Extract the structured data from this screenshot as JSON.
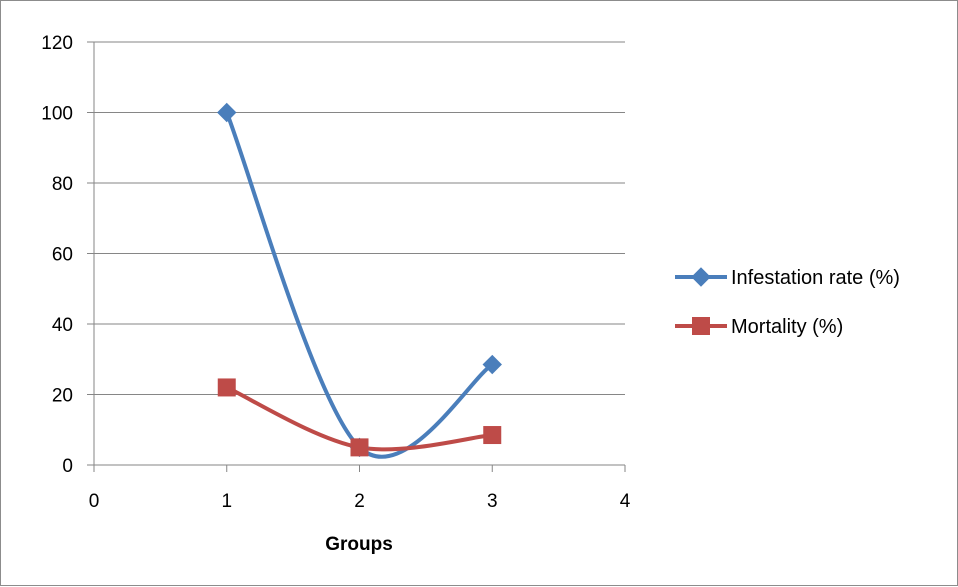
{
  "chart_data": {
    "type": "line",
    "title": "",
    "xlabel": "Groups",
    "ylabel": "",
    "xlim": [
      0,
      4
    ],
    "ylim": [
      0,
      120
    ],
    "x_ticks": [
      0,
      1,
      2,
      3,
      4
    ],
    "y_ticks": [
      0,
      20,
      40,
      60,
      80,
      100,
      120
    ],
    "grid": "horizontal major gridlines",
    "smoothed": true,
    "legend_position": "right",
    "series": [
      {
        "name": "Infestation rate (%)",
        "color": "#4a7ebb",
        "marker": "diamond",
        "points": [
          {
            "x": 1,
            "y": 100
          },
          {
            "x": 2,
            "y": 5
          },
          {
            "x": 3,
            "y": 28.5
          }
        ]
      },
      {
        "name": "Mortality (%)",
        "color": "#be4b48",
        "marker": "square",
        "points": [
          {
            "x": 1,
            "y": 22
          },
          {
            "x": 2,
            "y": 5
          },
          {
            "x": 3,
            "y": 8.5
          }
        ]
      }
    ]
  }
}
